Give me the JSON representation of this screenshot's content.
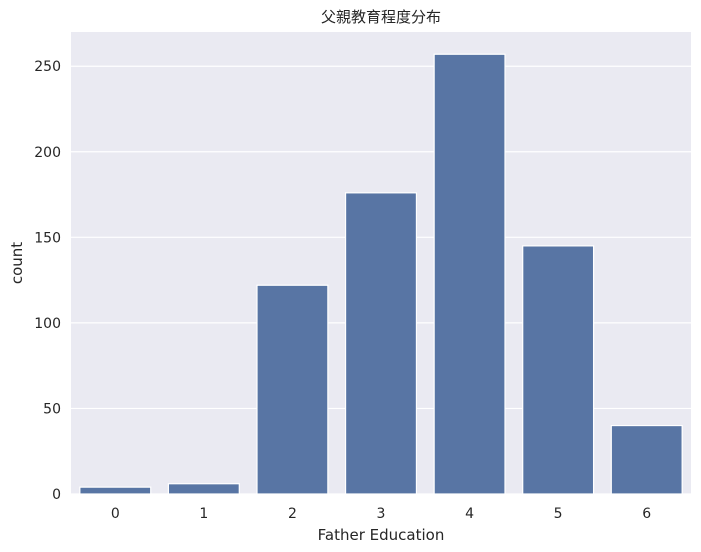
{
  "chart_data": {
    "type": "bar",
    "title": "父親教育程度分布",
    "xlabel": "Father Education",
    "ylabel": "count",
    "categories": [
      "0",
      "1",
      "2",
      "3",
      "4",
      "5",
      "6"
    ],
    "values": [
      4,
      6,
      122,
      176,
      257,
      145,
      40
    ],
    "ylim": [
      0,
      270
    ],
    "yticks": [
      0,
      50,
      100,
      150,
      200,
      250
    ],
    "ytick_labels": [
      "0",
      "50",
      "100",
      "150",
      "200",
      "250"
    ],
    "grid": true,
    "legend": "none",
    "colors": {
      "bar": "#5875a4",
      "plot_background": "#eaeaf2",
      "grid": "#ffffff",
      "text": "#262626"
    }
  }
}
